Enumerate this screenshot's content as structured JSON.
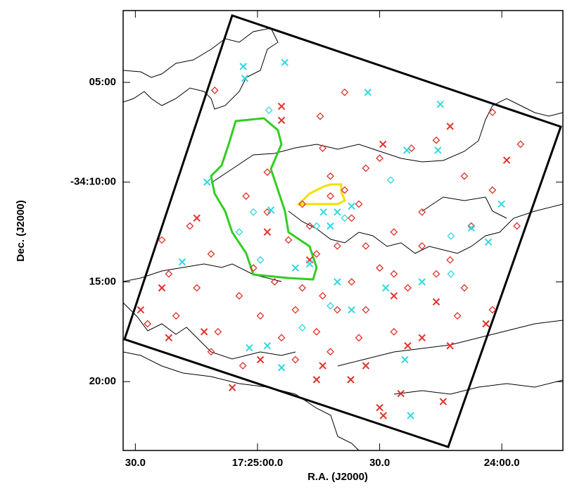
{
  "chart_data": {
    "type": "scatter",
    "xlabel": "R.A. (J2000)",
    "ylabel": "Dec. (J2000)",
    "xlim": [
      1533,
      1425
    ],
    "ylim": [
      -2063.45,
      -2041.4
    ],
    "xticks": [
      {
        "value": 1530,
        "label": "30.0"
      },
      {
        "value": 1500,
        "label": "17:25:00.0"
      },
      {
        "value": 1470,
        "label": "30.0"
      },
      {
        "value": 1440,
        "label": "24:00.0"
      }
    ],
    "yticks": [
      {
        "value": -2045,
        "label": "05:00"
      },
      {
        "value": -2050,
        "label": "-34:10:00"
      },
      {
        "value": -2055,
        "label": "15:00"
      },
      {
        "value": -2060,
        "label": "20:00"
      }
    ],
    "series": [
      {
        "marker": "diamond",
        "color": "#e0302a",
        "x": [
          1510.5,
          1478.6,
          1484.6,
          1456.1,
          1442.3,
          1435.4,
          1484.0,
          1470.0,
          1462.2,
          1497.6,
          1482.1,
          1473.4,
          1449.2,
          1442.3,
          1436.3,
          1447.5,
          1459.6,
          1466.5,
          1473.4,
          1476.9,
          1487.2,
          1492.4,
          1497.6,
          1502.8,
          1516.6,
          1523.5,
          1521.8,
          1514.9,
          1504.5,
          1499.3,
          1490.7,
          1484.0,
          1476.9,
          1470.0,
          1463.1,
          1456.1,
          1449.2,
          1442.3,
          1450.9,
          1466.5,
          1475.1,
          1485.5,
          1494.1,
          1509.7,
          1520.0,
          1527.0,
          1511.4,
          1503.6,
          1490.7,
          1482.1,
          1480.4,
          1473.4,
          1485.5,
          1482.1,
          1478.6,
          1475.1,
          1489.0,
          1501.0,
          1511.4,
          1495.8,
          1466.5,
          1459.6,
          1452.7,
          1480.4,
          1489.0
        ],
        "values": [
          -2045.4,
          -2045.5,
          -2046.7,
          -2047.9,
          -2046.5,
          -2048.1,
          -2048.3,
          -2048.8,
          -2048.3,
          -2049.5,
          -2049.7,
          -2049.3,
          -2049.7,
          -2050.4,
          -2052.2,
          -2052.2,
          -2051.5,
          -2052.5,
          -2053.2,
          -2051.8,
          -2052.2,
          -2052.9,
          -2051.5,
          -2050.7,
          -2052.2,
          -2052.9,
          -2054.6,
          -2055.3,
          -2055.7,
          -2056.7,
          -2056.4,
          -2055.7,
          -2055.0,
          -2054.3,
          -2055.3,
          -2054.6,
          -2055.3,
          -2056.4,
          -2056.7,
          -2057.5,
          -2057.8,
          -2057.5,
          -2057.8,
          -2057.5,
          -2056.7,
          -2057.1,
          -2058.5,
          -2059.2,
          -2058.9,
          -2058.5,
          -2056.4,
          -2056.4,
          -2053.6,
          -2050.7,
          -2050.4,
          -2051.1,
          -2051.1,
          -2054.3,
          -2053.6,
          -2055.0,
          -2054.6,
          -2053.2,
          -2053.9,
          -2053.2,
          -2055.3
        ]
      },
      {
        "marker": "x",
        "color": "#e0302a",
        "x": [
          1494.1,
          1452.7,
          1469.2,
          1438.8,
          1514.9,
          1523.5,
          1528.7,
          1513.1,
          1521.8,
          1499.3,
          1484.0,
          1477.1,
          1473.4,
          1463.1,
          1459.6,
          1443.9,
          1452.7,
          1470.0,
          1464.8,
          1454.4,
          1469.1,
          1497.6,
          1487.2,
          1466.5,
          1456.1,
          1494.1,
          1506.2,
          1485.5
        ],
        "values": [
          -2046.2,
          -2047.2,
          -2048.1,
          -2048.9,
          -2051.8,
          -2055.3,
          -2056.4,
          -2057.5,
          -2057.8,
          -2058.9,
          -2059.2,
          -2059.9,
          -2059.2,
          -2058.2,
          -2057.8,
          -2057.1,
          -2058.2,
          -2061.3,
          -2060.6,
          -2061.0,
          -2061.7,
          -2052.5,
          -2053.9,
          -2055.7,
          -2056.0,
          -2046.9,
          -2060.3,
          -2059.9
        ]
      },
      {
        "marker": "x",
        "color": "#2fd8e0",
        "x": [
          1503.5,
          1493.3,
          1503.1,
          1472.9,
          1455.1,
          1463.3,
          1455.7,
          1512.4,
          1440.1,
          1447.5,
          1443.3,
          1518.5,
          1496.7,
          1490.7,
          1487.2,
          1482.1,
          1480.4,
          1476.9,
          1483.8,
          1480.4,
          1468.5,
          1476.9,
          1459.6,
          1463.8,
          1502.0,
          1494.1,
          1462.4,
          1497.6
        ],
        "values": [
          -2044.2,
          -2044.0,
          -2044.8,
          -2045.5,
          -2046.1,
          -2048.4,
          -2048.4,
          -2050.0,
          -2051.1,
          -2052.3,
          -2053.0,
          -2054.0,
          -2051.4,
          -2054.3,
          -2054.1,
          -2052.2,
          -2051.5,
          -2051.2,
          -2051.5,
          -2055.0,
          -2055.3,
          -2056.4,
          -2055.0,
          -2058.9,
          -2058.3,
          -2059.3,
          -2061.7,
          -2058.2
        ]
      },
      {
        "marker": "diamond",
        "color": "#2fd8e0",
        "x": [
          1497.2,
          1501.0,
          1504.5,
          1482.1,
          1489.0,
          1452.5,
          1452.5,
          1478.6,
          1485.5,
          1467.3,
          1499.3
        ],
        "values": [
          -2046.4,
          -2051.5,
          -2052.5,
          -2056.2,
          -2057.3,
          -2054.6,
          -2052.7,
          -2051.8,
          -2052.2,
          -2049.9,
          -2053.9
        ]
      }
    ]
  }
}
